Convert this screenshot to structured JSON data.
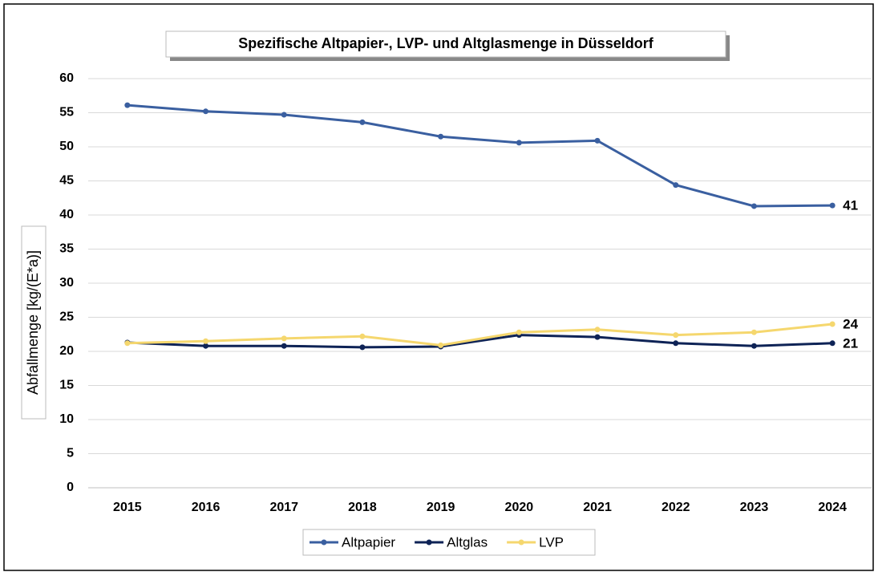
{
  "chart_data": {
    "type": "line",
    "title": "Spezifische Altpapier-, LVP- und Altglasmenge in Düsseldorf",
    "y_label": "Abfallmenge [kg/(E*a)]",
    "categories": [
      "2015",
      "2016",
      "2017",
      "2018",
      "2019",
      "2020",
      "2021",
      "2022",
      "2023",
      "2024"
    ],
    "series": [
      {
        "name": "Altpapier",
        "color": "#3a5fa0",
        "values": [
          56.1,
          55.2,
          54.7,
          53.6,
          51.5,
          50.6,
          50.9,
          44.4,
          41.3,
          41.4
        ],
        "value_labels": [
          null,
          null,
          null,
          null,
          null,
          null,
          null,
          null,
          null,
          "41"
        ]
      },
      {
        "name": "Altglas",
        "color": "#0e2356",
        "values": [
          21.3,
          20.8,
          20.8,
          20.6,
          20.7,
          22.4,
          22.1,
          21.2,
          20.8,
          21.2
        ],
        "value_labels": [
          null,
          null,
          null,
          null,
          null,
          null,
          null,
          null,
          null,
          "21"
        ]
      },
      {
        "name": "LVP",
        "color": "#f5d76e",
        "values": [
          21.2,
          21.5,
          21.9,
          22.2,
          20.9,
          22.8,
          23.2,
          22.4,
          22.8,
          24.0
        ],
        "value_labels": [
          null,
          null,
          null,
          null,
          null,
          null,
          null,
          null,
          null,
          "24"
        ]
      }
    ],
    "ylim": [
      0,
      60
    ],
    "yticks": [
      0,
      5,
      10,
      15,
      20,
      25,
      30,
      35,
      40,
      45,
      50,
      55,
      60
    ],
    "grid": true,
    "legend": "bottom"
  }
}
